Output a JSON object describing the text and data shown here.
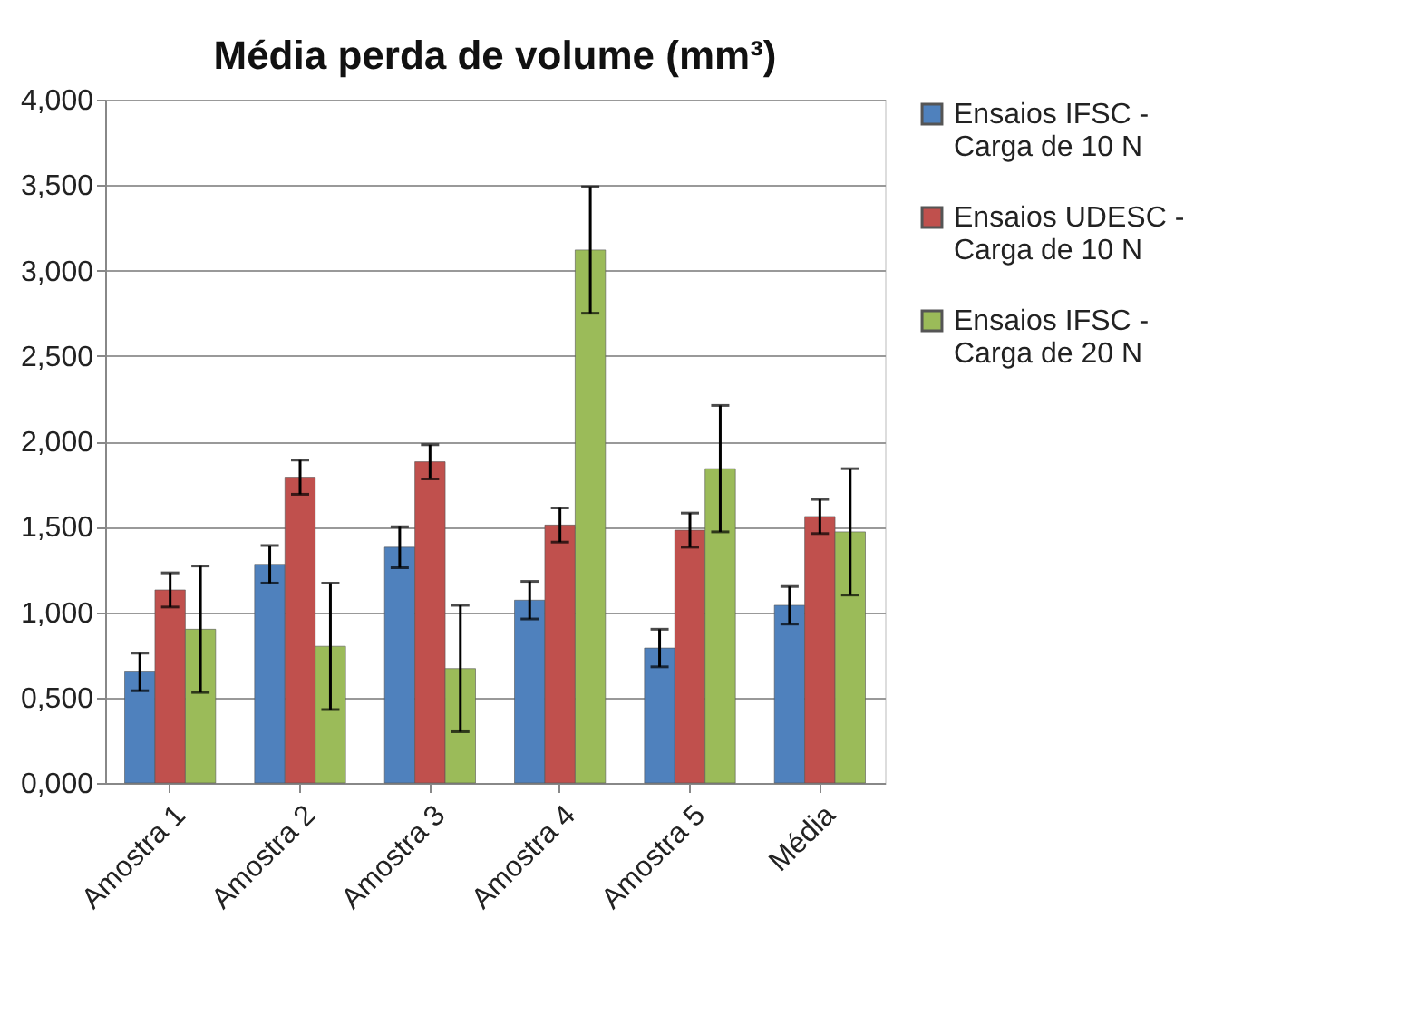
{
  "chart_data": {
    "type": "bar",
    "title": "Média perda de volume (mm³)",
    "categories": [
      "Amostra 1",
      "Amostra 2",
      "Amostra 3",
      "Amostra 4",
      "Amostra 5",
      "Média"
    ],
    "series": [
      {
        "name": "Ensaios IFSC - Carga de 10 N",
        "color": "#4f81bd",
        "values": [
          0.65,
          1.28,
          1.38,
          1.07,
          0.79,
          1.04
        ],
        "errors": [
          0.11,
          0.11,
          0.12,
          0.11,
          0.11,
          0.11
        ]
      },
      {
        "name": "Ensaios UDESC - Carga de 10 N",
        "color": "#c0504d",
        "values": [
          1.13,
          1.79,
          1.88,
          1.51,
          1.48,
          1.56
        ],
        "errors": [
          0.1,
          0.1,
          0.1,
          0.1,
          0.1,
          0.1
        ]
      },
      {
        "name": "Ensaios IFSC - Carga de 20 N",
        "color": "#9bbb59",
        "values": [
          0.9,
          0.8,
          0.67,
          3.12,
          1.84,
          1.47
        ],
        "errors": [
          0.37,
          0.37,
          0.37,
          0.37,
          0.37,
          0.37
        ]
      }
    ],
    "ylim": [
      0,
      4
    ],
    "yticks": [
      {
        "value": 0,
        "label": "0,000"
      },
      {
        "value": 0.5,
        "label": "0,500"
      },
      {
        "value": 1,
        "label": "1,000"
      },
      {
        "value": 1.5,
        "label": "1,500"
      },
      {
        "value": 2,
        "label": "2,000"
      },
      {
        "value": 2.5,
        "label": "2,500"
      },
      {
        "value": 3,
        "label": "3,000"
      },
      {
        "value": 3.5,
        "label": "3,500"
      },
      {
        "value": 4,
        "label": "4,000"
      }
    ],
    "grid": "y",
    "legend": "right"
  }
}
